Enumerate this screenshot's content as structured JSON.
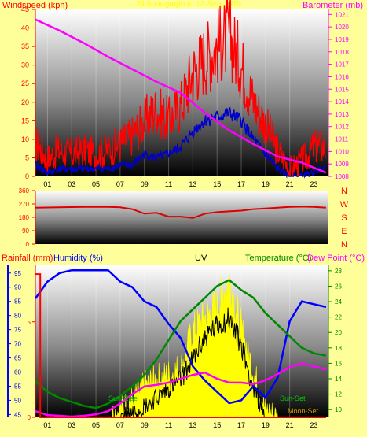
{
  "colors": {
    "background": "#ffff99",
    "windspeed": "#ff0000",
    "windgust": "#ff0000",
    "windavg": "#0000cc",
    "barometer": "#ff00ff",
    "direction": "#dd0000",
    "humidity": "#0000ff",
    "rainfall": "#ff0000",
    "uv": "#ffff00",
    "temperature": "#008800",
    "dewpoint": "#ff00ff",
    "solar": "#000000"
  },
  "chart_data": [
    {
      "type": "line",
      "panel": "wind-barometer",
      "header_left": "Windspeed (kph)",
      "header_center": "24 hour graph to 12-Sep-2019",
      "header_right": "Barometer (mb)",
      "x_ticks": [
        "01",
        "03",
        "05",
        "07",
        "09",
        "11",
        "13",
        "15",
        "17",
        "19",
        "21",
        "23"
      ],
      "y_left_ticks": [
        "0",
        "5",
        "10",
        "15",
        "20",
        "25",
        "30",
        "35",
        "40",
        "45"
      ],
      "y_left_range": [
        0,
        45
      ],
      "y_right_ticks": [
        "1008",
        "1009",
        "1010",
        "1011",
        "1012",
        "1013",
        "1014",
        "1015",
        "1016",
        "1017",
        "1018",
        "1019",
        "1020",
        "1021"
      ],
      "y_right_range": [
        1008,
        1021.4
      ],
      "series": [
        {
          "key": "gust",
          "x": [
            0,
            1,
            2,
            3,
            4,
            5,
            6,
            7,
            8,
            9,
            10,
            11,
            12,
            13,
            14,
            15,
            16,
            17,
            18,
            19,
            20,
            21,
            22,
            23,
            24
          ],
          "values": [
            9,
            5,
            7,
            6,
            7,
            6,
            7,
            9,
            11,
            15,
            18,
            15,
            19,
            28,
            32,
            35,
            38,
            30,
            20,
            14,
            7,
            2,
            4,
            8,
            8
          ]
        },
        {
          "key": "avg",
          "x": [
            0,
            1,
            2,
            3,
            4,
            5,
            6,
            7,
            8,
            9,
            10,
            11,
            12,
            13,
            14,
            15,
            16,
            17,
            18,
            19,
            20,
            21,
            22,
            23,
            24
          ],
          "values": [
            3,
            1,
            2,
            2,
            2,
            2,
            2,
            3,
            3,
            6,
            5,
            6,
            8,
            12,
            15,
            16,
            17,
            15,
            10,
            6,
            2,
            0,
            0,
            1,
            3
          ]
        },
        {
          "key": "baro",
          "x": [
            0,
            2,
            4,
            6,
            8,
            10,
            12,
            14,
            16,
            18,
            20,
            22,
            24
          ],
          "values": [
            1020.6,
            1019.7,
            1018.7,
            1017.6,
            1016.6,
            1015.6,
            1014.7,
            1013.1,
            1011.7,
            1010.6,
            1009.6,
            1009.1,
            1008.3
          ]
        }
      ]
    },
    {
      "type": "line",
      "panel": "wind-direction",
      "y_ticks": [
        "0",
        "90",
        "180",
        "270",
        "360"
      ],
      "y_range": [
        0,
        360
      ],
      "compass_labels": [
        "N",
        "W",
        "S",
        "E",
        "N"
      ],
      "series": [
        {
          "key": "dir",
          "x": [
            0,
            2,
            4,
            6,
            7,
            8,
            9,
            10,
            11,
            12,
            13,
            14,
            15,
            16,
            17,
            18,
            19,
            20,
            21,
            22,
            23,
            24
          ],
          "values": [
            245,
            248,
            250,
            250,
            248,
            235,
            205,
            210,
            185,
            185,
            175,
            205,
            215,
            220,
            225,
            235,
            240,
            245,
            250,
            252,
            250,
            245
          ]
        }
      ]
    },
    {
      "type": "line",
      "panel": "rain-humidity-uv-temperature",
      "header_rain": "Rainfall (mm)",
      "header_humidity": "Humidity (%)",
      "header_uv": "UV",
      "header_temperature": "Temperature (°C)",
      "header_dewpoint": "Dew Point (°C)",
      "humidity_ticks": [
        "45",
        "50",
        "55",
        "60",
        "65",
        "70",
        "75",
        "80",
        "85",
        "90",
        "95"
      ],
      "humidity_range": [
        44,
        98
      ],
      "rain_ticks": [
        "0",
        "5"
      ],
      "rain_range": [
        0,
        8
      ],
      "temperature_ticks": [
        "10",
        "12",
        "14",
        "16",
        "18",
        "20",
        "22",
        "24",
        "26",
        "28"
      ],
      "temperature_range": [
        9,
        28.8
      ],
      "annotations": [
        "Sun-Rise",
        "Sun-Set",
        "Moon-Set"
      ],
      "series": [
        {
          "key": "humidity",
          "x": [
            0,
            1,
            2,
            3,
            4,
            5,
            6,
            7,
            8,
            9,
            10,
            11,
            12,
            13,
            14,
            15,
            16,
            17,
            18,
            19,
            20,
            21,
            22,
            23,
            24
          ],
          "values": [
            86,
            92,
            95,
            96,
            96,
            96,
            96,
            92,
            90,
            85,
            83,
            77,
            72,
            62,
            57,
            53,
            49,
            50,
            55,
            51,
            58,
            78,
            85,
            84,
            83
          ]
        },
        {
          "key": "temperature",
          "x": [
            0,
            1,
            2,
            3,
            4,
            5,
            6,
            7,
            8,
            9,
            10,
            11,
            12,
            13,
            14,
            15,
            16,
            17,
            18,
            19,
            20,
            21,
            22,
            23,
            24
          ],
          "values": [
            13.7,
            12.3,
            11.5,
            11.0,
            10.5,
            10.2,
            10.8,
            11.8,
            13.0,
            14.5,
            16.5,
            19.0,
            21.5,
            23.0,
            24.5,
            26.0,
            26.8,
            25.5,
            24.5,
            22.5,
            21.0,
            19.5,
            18.0,
            17.3,
            17.0
          ]
        },
        {
          "key": "dewpoint",
          "x": [
            0,
            1,
            2,
            3,
            4,
            5,
            6,
            7,
            8,
            9,
            10,
            11,
            12,
            13,
            14,
            15,
            16,
            17,
            18,
            19,
            20,
            21,
            22,
            23,
            24
          ],
          "values": [
            9.8,
            9.3,
            9.2,
            9.1,
            9.2,
            9.4,
            9.8,
            10.8,
            12.0,
            13.0,
            13.2,
            13.5,
            14.0,
            14.5,
            14.8,
            14.0,
            13.5,
            13.5,
            13.3,
            13.8,
            14.6,
            15.5,
            16.0,
            15.6,
            15.2
          ]
        },
        {
          "key": "rain",
          "x": [
            0,
            0.4,
            1,
            24
          ],
          "values": [
            7.5,
            7.5,
            0,
            0
          ]
        },
        {
          "key": "uv",
          "x": [
            6,
            7,
            8,
            9,
            10,
            11,
            12,
            13,
            14,
            15,
            16,
            17,
            18,
            19,
            20
          ],
          "values": [
            0,
            0.4,
            0.9,
            1.6,
            2.0,
            2.2,
            2.6,
            4.5,
            5.2,
            5.8,
            7.2,
            4.6,
            2.4,
            0.4,
            0
          ]
        },
        {
          "key": "solar",
          "x": [
            7,
            8,
            9,
            10,
            11,
            12,
            13,
            14,
            15,
            16,
            17,
            18,
            19
          ],
          "values": [
            0.1,
            0.3,
            0.6,
            1.0,
            1.5,
            2.0,
            3.0,
            4.2,
            4.8,
            5.2,
            3.8,
            1.5,
            0.1
          ]
        }
      ]
    }
  ]
}
